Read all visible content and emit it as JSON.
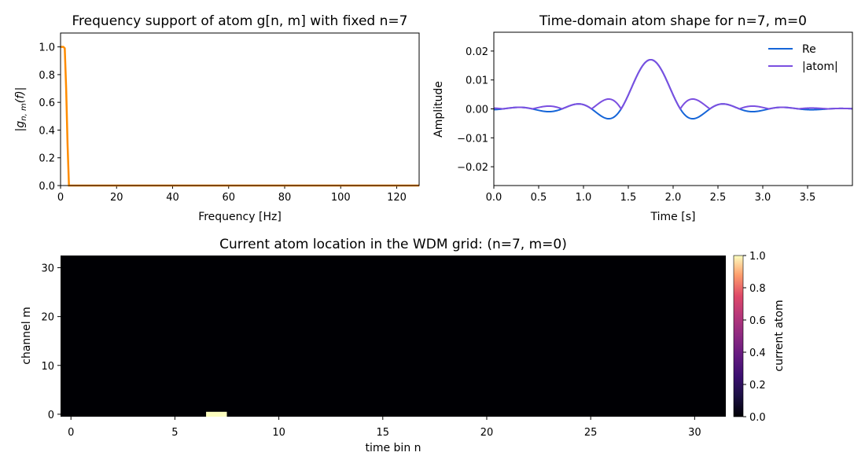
{
  "chart_data": [
    {
      "type": "line",
      "title": "Frequency support of atom g[n, m] with fixed n=7",
      "xlabel": "Frequency [Hz]",
      "ylabel": "|g_{n,m}(f)|",
      "xlim": [
        0,
        128
      ],
      "ylim": [
        0,
        1.1
      ],
      "xticks": [
        0,
        20,
        40,
        60,
        80,
        100,
        120
      ],
      "yticks": [
        "0.0",
        "0.2",
        "0.4",
        "0.6",
        "0.8",
        "1.0"
      ],
      "grid": false,
      "series": [
        {
          "name": "|g(f)|",
          "color": "#ff8c00",
          "x": [
            0,
            1,
            1.5,
            2,
            2.5,
            3,
            4,
            128
          ],
          "y": [
            1.0,
            1.0,
            0.99,
            0.7,
            0.3,
            0.0,
            0.0,
            0.0
          ]
        }
      ]
    },
    {
      "type": "line",
      "title": "Time-domain atom shape for n=7, m=0",
      "xlabel": "Time [s]",
      "ylabel": "Amplitude",
      "xlim": [
        0,
        4.0
      ],
      "ylim": [
        -0.0265,
        0.0265
      ],
      "xticks": [
        "0.0",
        "0.5",
        "1.0",
        "1.5",
        "2.0",
        "2.5",
        "3.0",
        "3.5"
      ],
      "yticks": [
        "−0.02",
        "−0.01",
        "0.00",
        "0.01",
        "0.02"
      ],
      "legend_position": "upper right",
      "grid": false,
      "series": [
        {
          "name": "Re",
          "color": "#1565d8"
        },
        {
          "name": "|atom|",
          "color": "#7b4fe0"
        }
      ],
      "peak": {
        "t": 1.75,
        "value": 0.017
      },
      "side_lobes": [
        {
          "t": 1.42,
          "re": -0.003,
          "abs": 0.003
        },
        {
          "t": 2.08,
          "re": -0.003,
          "abs": 0.003
        },
        {
          "t": 1.2,
          "re": 0.0012,
          "abs": 0.0012
        },
        {
          "t": 2.3,
          "re": 0.0012,
          "abs": 0.0012
        }
      ]
    },
    {
      "type": "heatmap",
      "title": "Current atom location in the WDM grid: (n=7, m=0)",
      "xlabel": "time bin n",
      "ylabel": "channel m",
      "n_bins": 32,
      "m_channels": 33,
      "xticks": [
        0,
        5,
        10,
        15,
        20,
        25,
        30
      ],
      "yticks": [
        0,
        10,
        20,
        30
      ],
      "active_cell": {
        "n": 7,
        "m": 0,
        "value": 1.0
      },
      "colormap": "magma",
      "colorbar": {
        "label": "current atom",
        "ticks": [
          "0.0",
          "0.2",
          "0.4",
          "0.6",
          "0.8",
          "1.0"
        ],
        "range": [
          0,
          1
        ]
      }
    }
  ]
}
